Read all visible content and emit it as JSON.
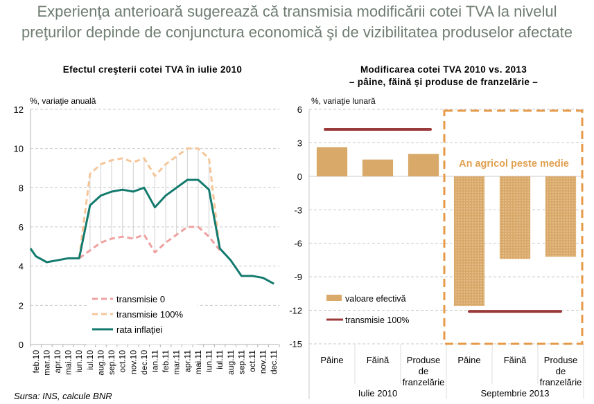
{
  "header": {
    "title_line1": "Experienţa anterioară sugerează că transmisia modificării cotei TVA la nivelul",
    "title_line2": "preţurilor depinde de conjunctura economică şi de vizibilitatea produselor afectate"
  },
  "footer": {
    "source": "Sursa: INS, calcule BNR"
  },
  "chart_data": [
    {
      "type": "line",
      "title": "Efectul creşterii cotei TVA în iulie 2010",
      "ylabel": "%, variaţie anuală",
      "xlabel": "",
      "ylim": [
        0,
        12
      ],
      "yticks": [
        "0",
        "2",
        "4",
        "6",
        "8",
        "10",
        "12"
      ],
      "ytick_values": [
        0,
        2,
        4,
        6,
        8,
        10,
        12
      ],
      "grid": true,
      "legend_position": "bottom-center",
      "categories": [
        "feb.10",
        "mar.10",
        "apr.10",
        "mai.10",
        "iun.10",
        "iul.10",
        "aug.10",
        "sep.10",
        "oct.10",
        "nov.10",
        "dec.10",
        "ian.11",
        "feb.11",
        "mar.11",
        "apr.11",
        "mai.11",
        "iun.11",
        "iul.11",
        "aug.11",
        "sep.11",
        "oct.11",
        "nov.11",
        "dec.11"
      ],
      "series": [
        {
          "name": "transmisie 0",
          "color": "#f0a0a0",
          "style": "dashed",
          "values": [
            null,
            null,
            null,
            null,
            4.4,
            4.8,
            5.2,
            5.4,
            5.5,
            5.4,
            5.6,
            4.7,
            5.2,
            5.6,
            6.0,
            6.0,
            5.5,
            4.8,
            null,
            null,
            null,
            null,
            null
          ]
        },
        {
          "name": "transmisie 100%",
          "color": "#f5c69a",
          "style": "dashed",
          "values": [
            null,
            null,
            null,
            null,
            4.4,
            8.7,
            9.2,
            9.4,
            9.5,
            9.3,
            9.5,
            8.6,
            9.2,
            9.6,
            10.0,
            10.0,
            9.5,
            4.8,
            null,
            null,
            null,
            null,
            null
          ]
        },
        {
          "name": "rata inflaţiei",
          "color": "#137a6e",
          "style": "solid",
          "values": [
            4.5,
            4.2,
            4.3,
            4.4,
            4.4,
            7.1,
            7.6,
            7.8,
            7.9,
            7.8,
            8.0,
            7.0,
            7.6,
            8.0,
            8.4,
            8.4,
            7.9,
            4.9,
            4.3,
            3.5,
            3.5,
            3.4,
            3.1
          ]
        }
      ],
      "start_value": 4.9
    },
    {
      "type": "bar",
      "title": "Modificarea cotei TVA 2010 vs. 2013",
      "subtitle": "– pâine, făină şi produse de franzelărie –",
      "ylabel": "%, variaţie lunară",
      "xlabel": "",
      "ylim": [
        -15,
        6
      ],
      "yticks": [
        "-15",
        "-12",
        "-9",
        "-6",
        "-3",
        "0",
        "3",
        "6"
      ],
      "ytick_values": [
        -15,
        -12,
        -9,
        -6,
        -3,
        0,
        3,
        6
      ],
      "grid": true,
      "legend_position": "bottom-left",
      "groups": [
        {
          "label": "Iulie 2010",
          "categories": [
            "Pâine",
            "Făină",
            "Produse de franzelărie"
          ]
        },
        {
          "label": "Septembrie 2013",
          "categories": [
            "Pâine",
            "Făină",
            "Produse de franzelărie"
          ]
        }
      ],
      "categories": [
        "Pâine",
        "Făină",
        "Produse de franzelărie",
        "Pâine",
        "Făină",
        "Produse de franzelărie"
      ],
      "series": [
        {
          "name": "valoare efectivă",
          "color": "#d9a96a",
          "values": [
            2.6,
            1.5,
            2.0,
            -11.6,
            -7.4,
            -7.2
          ]
        },
        {
          "name": "transmisie 100%",
          "color": "#9b3a3a",
          "values": [
            4.2,
            4.2,
            4.2,
            -12.1,
            -12.1,
            -12.1
          ]
        }
      ],
      "annotation": {
        "text": "An agricol peste medie",
        "color": "#e0a050",
        "box_color": "#e69a48"
      }
    }
  ]
}
